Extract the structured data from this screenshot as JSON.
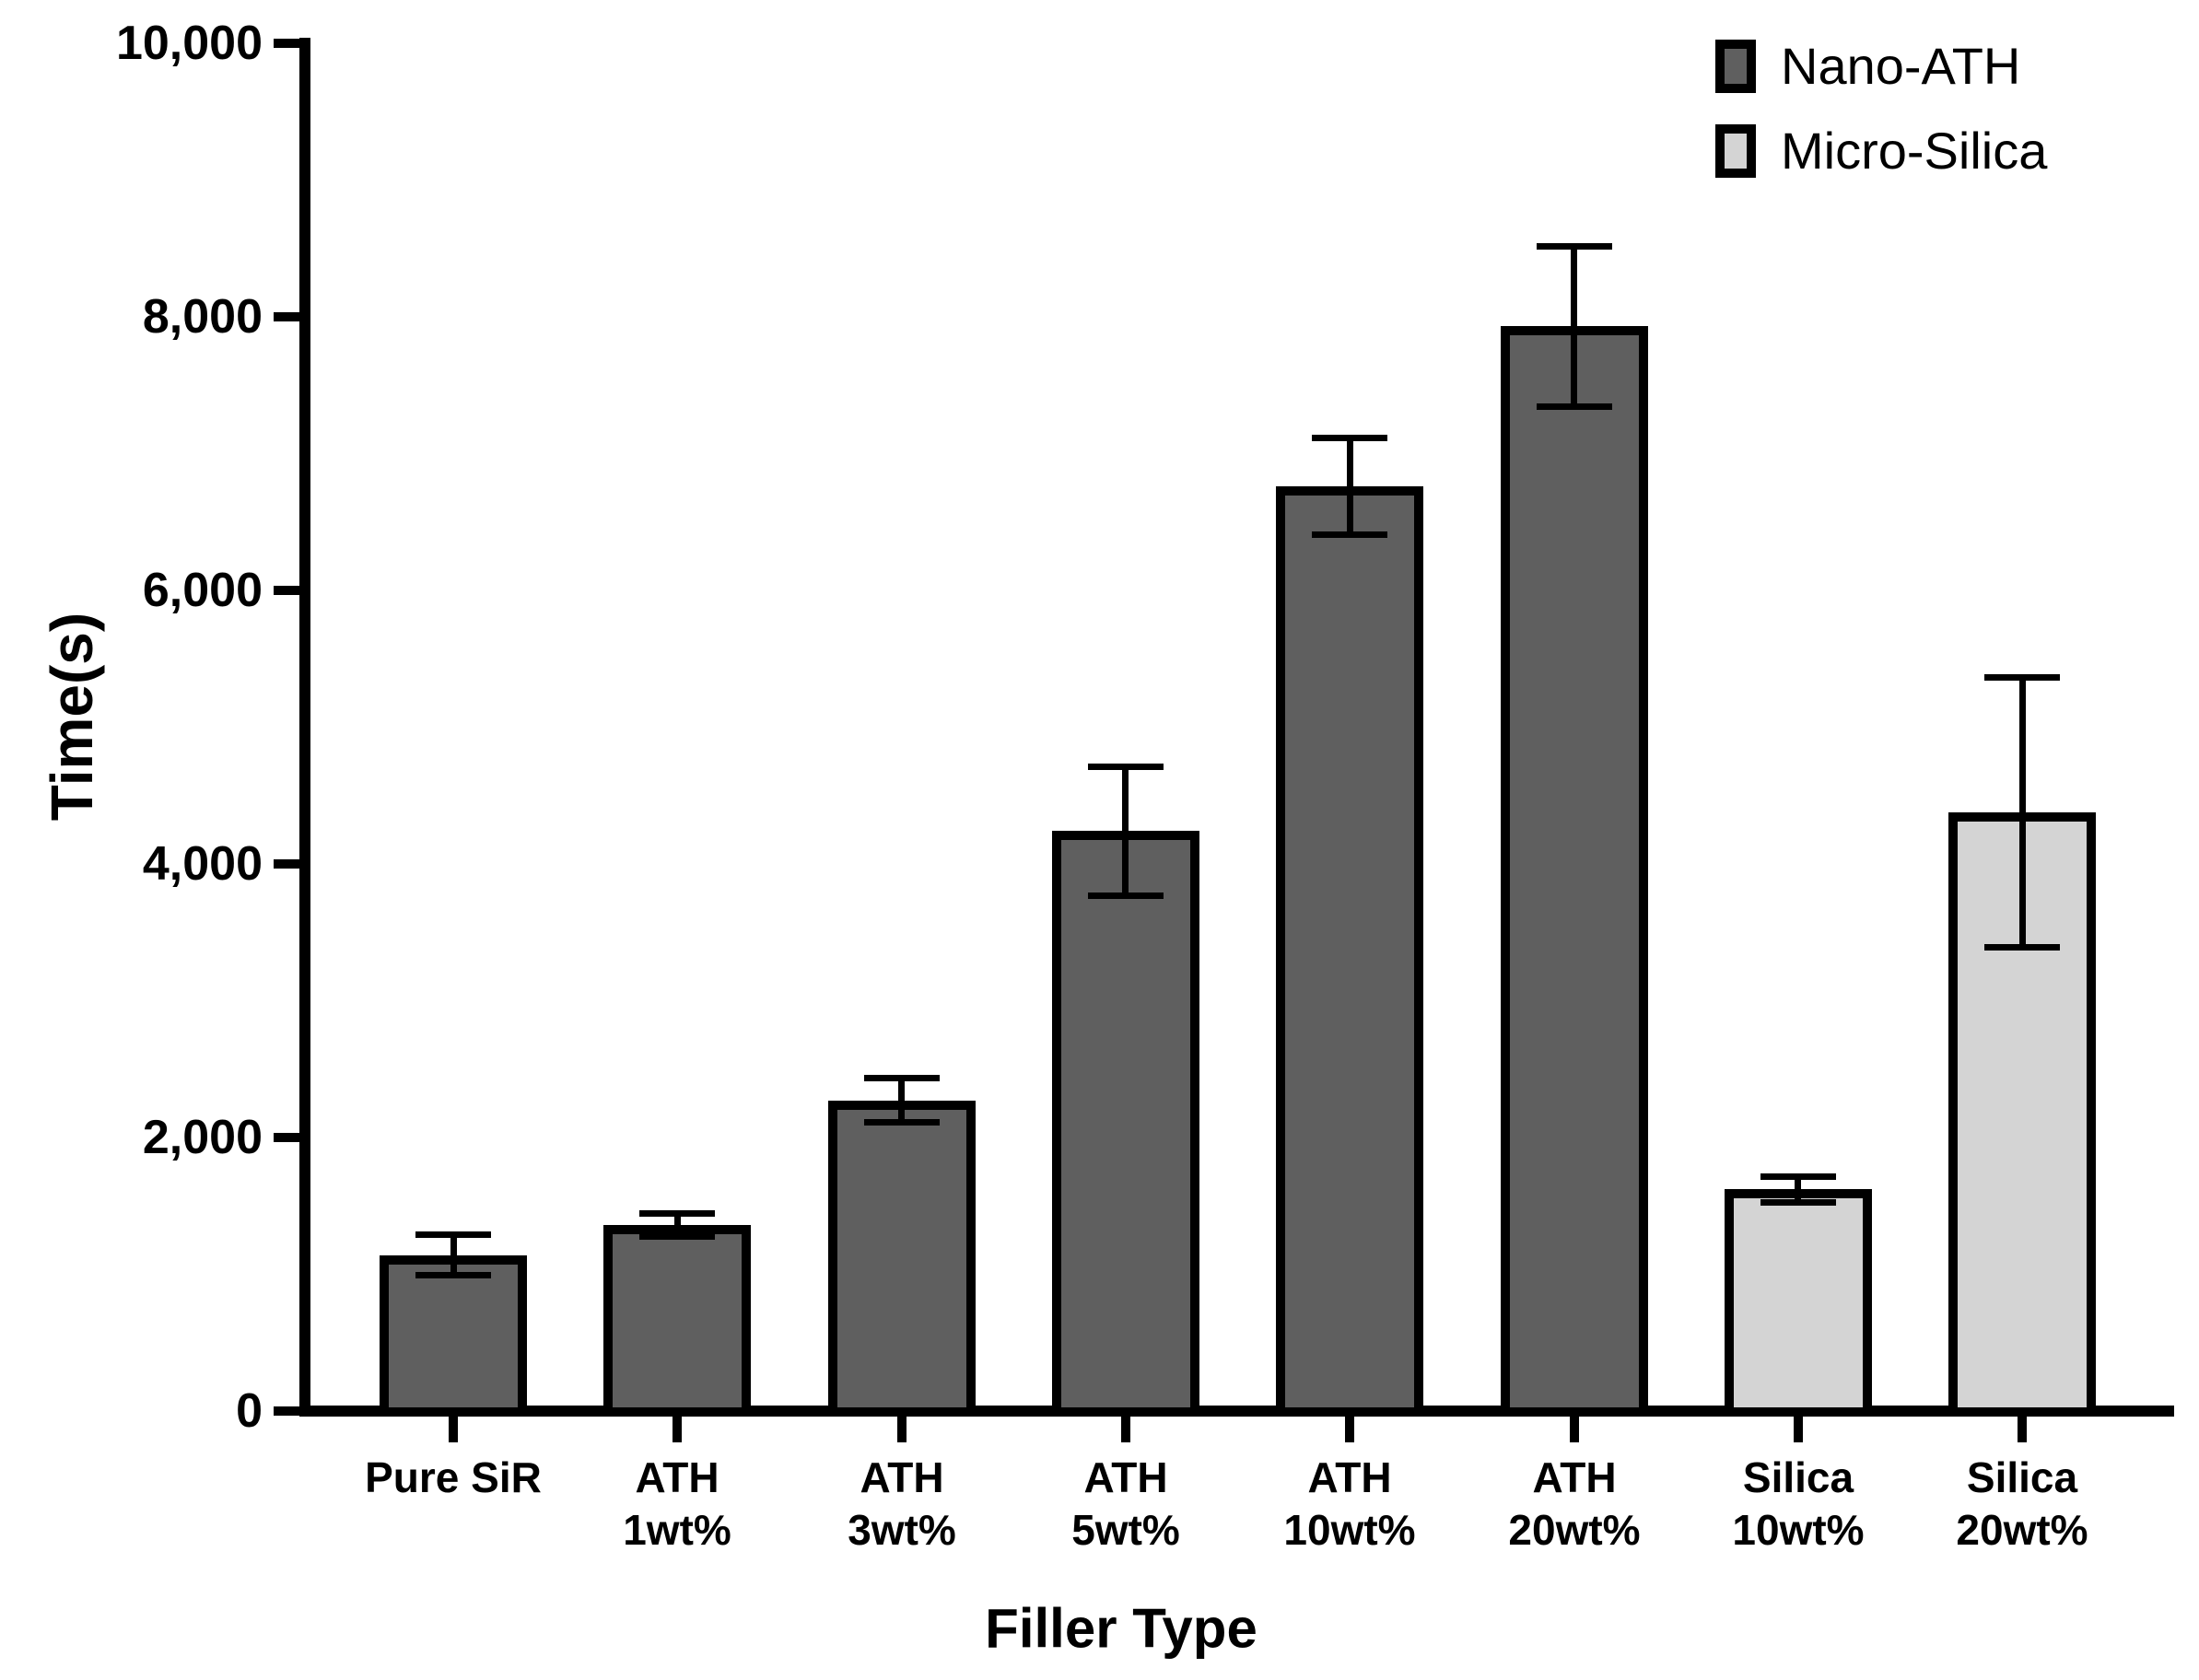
{
  "figure": {
    "background": "#ffffff",
    "text_color": "#000000"
  },
  "chart_data": {
    "type": "bar",
    "title": "",
    "xlabel": "Filler Type",
    "ylabel": "Time(s)",
    "ylim": [
      0,
      10000
    ],
    "grid": false,
    "legend_position": "top-right",
    "error_bars": true,
    "yticks": [
      {
        "value": 0,
        "label": "0"
      },
      {
        "value": 2000,
        "label": "2,000"
      },
      {
        "value": 4000,
        "label": "4,000"
      },
      {
        "value": 6000,
        "label": "6,000"
      },
      {
        "value": 8000,
        "label": "8,000"
      },
      {
        "value": 10000,
        "label": "10,000"
      }
    ],
    "series": [
      {
        "name": "Nano-ATH",
        "color": "#5f5f5f"
      },
      {
        "name": "Micro-Silica",
        "color": "#d4d4d4"
      }
    ],
    "bars": [
      {
        "category_lines": [
          "Pure SiR"
        ],
        "series": "Nano-ATH",
        "value": 1140,
        "error": 150
      },
      {
        "category_lines": [
          "ATH",
          "1wt%"
        ],
        "series": "Nano-ATH",
        "value": 1360,
        "error": 85
      },
      {
        "category_lines": [
          "ATH",
          "3wt%"
        ],
        "series": "Nano-ATH",
        "value": 2270,
        "error": 165
      },
      {
        "category_lines": [
          "ATH",
          "5wt%"
        ],
        "series": "Nano-ATH",
        "value": 4240,
        "error": 475
      },
      {
        "category_lines": [
          "ATH",
          "10wt%"
        ],
        "series": "Nano-ATH",
        "value": 6760,
        "error": 355
      },
      {
        "category_lines": [
          "ATH",
          "20wt%"
        ],
        "series": "Nano-ATH",
        "value": 7930,
        "error": 590
      },
      {
        "category_lines": [
          "Silica",
          "10wt%"
        ],
        "series": "Micro-Silica",
        "value": 1620,
        "error": 100
      },
      {
        "category_lines": [
          "Silica",
          "20wt%"
        ],
        "series": "Micro-Silica",
        "value": 4380,
        "error": 990
      }
    ]
  }
}
